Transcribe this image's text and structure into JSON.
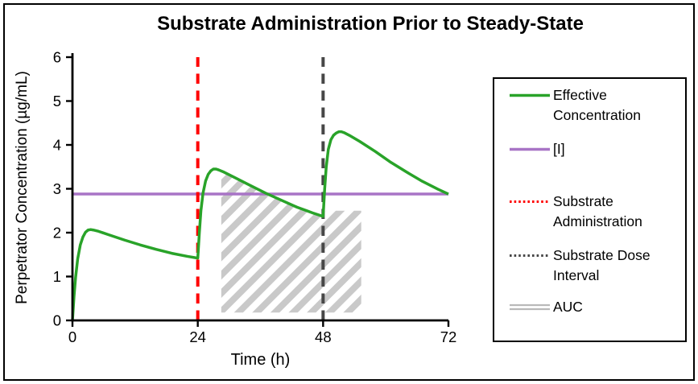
{
  "chart_data": {
    "type": "line",
    "title": "Substrate Administration Prior to Steady-State",
    "xlabel": "Time (h)",
    "ylabel": "Perpetrator Concentration (µg/mL)",
    "xlim": [
      0,
      72
    ],
    "ylim": [
      0,
      6
    ],
    "x_ticks": [
      0,
      24,
      48,
      72
    ],
    "y_ticks": [
      0,
      1,
      2,
      3,
      4,
      5,
      6
    ],
    "grid": false,
    "legend_position": "right",
    "series": [
      {
        "name": "Effective Concentration",
        "color": "#29a329",
        "style": "solid",
        "points": [
          [
            0,
            0
          ],
          [
            0.3,
            0.55
          ],
          [
            0.6,
            0.98
          ],
          [
            1,
            1.4
          ],
          [
            1.5,
            1.72
          ],
          [
            2,
            1.9
          ],
          [
            2.5,
            2.01
          ],
          [
            3,
            2.06
          ],
          [
            3.5,
            2.07
          ],
          [
            4,
            2.06
          ],
          [
            5,
            2.03
          ],
          [
            7,
            1.95
          ],
          [
            10,
            1.83
          ],
          [
            13,
            1.72
          ],
          [
            16,
            1.62
          ],
          [
            19,
            1.53
          ],
          [
            22,
            1.46
          ],
          [
            24,
            1.42
          ],
          [
            24.3,
            2.0
          ],
          [
            24.6,
            2.5
          ],
          [
            25,
            2.9
          ],
          [
            25.5,
            3.18
          ],
          [
            26,
            3.33
          ],
          [
            26.5,
            3.41
          ],
          [
            27,
            3.45
          ],
          [
            27.5,
            3.45
          ],
          [
            28,
            3.43
          ],
          [
            29,
            3.38
          ],
          [
            31,
            3.26
          ],
          [
            34,
            3.08
          ],
          [
            37,
            2.9
          ],
          [
            40,
            2.74
          ],
          [
            43,
            2.58
          ],
          [
            46,
            2.45
          ],
          [
            48,
            2.37
          ],
          [
            48.3,
            3.0
          ],
          [
            48.6,
            3.5
          ],
          [
            49,
            3.9
          ],
          [
            49.5,
            4.12
          ],
          [
            50,
            4.22
          ],
          [
            50.5,
            4.27
          ],
          [
            51,
            4.3
          ],
          [
            51.5,
            4.3
          ],
          [
            52,
            4.28
          ],
          [
            53,
            4.22
          ],
          [
            55,
            4.08
          ],
          [
            58,
            3.85
          ],
          [
            61,
            3.6
          ],
          [
            64,
            3.38
          ],
          [
            67,
            3.17
          ],
          [
            70,
            2.99
          ],
          [
            72,
            2.88
          ]
        ]
      },
      {
        "name": "[I]",
        "color": "#a874c6",
        "style": "solid",
        "value": 2.88,
        "points": [
          [
            0,
            2.88
          ],
          [
            72,
            2.88
          ]
        ]
      },
      {
        "name": "Substrate Administration",
        "color": "#ff0000",
        "style": "dashed",
        "at_x": 24,
        "points": [
          [
            24,
            0
          ],
          [
            24,
            6
          ]
        ]
      },
      {
        "name": "Substrate Dose Interval",
        "color": "#474747",
        "style": "dashed",
        "at_x": 48,
        "points": [
          [
            48,
            0
          ],
          [
            48,
            6
          ]
        ]
      }
    ],
    "auc_region": {
      "name": "AUC",
      "fill_style": "diagonal-hatch",
      "color": "#c9c9c9",
      "points": [
        [
          28.5,
          0.18
        ],
        [
          28.5,
          3.35
        ],
        [
          29,
          3.38
        ],
        [
          31,
          3.26
        ],
        [
          34,
          3.08
        ],
        [
          37,
          2.9
        ],
        [
          40,
          2.74
        ],
        [
          43,
          2.58
        ],
        [
          46,
          2.45
        ],
        [
          48,
          2.38
        ],
        [
          48.6,
          2.5
        ],
        [
          55.3,
          2.5
        ],
        [
          55.3,
          0.18
        ]
      ]
    }
  },
  "legend": {
    "items": [
      {
        "label": "Effective Concentration",
        "swatch": "solid-line",
        "color": "#29a329"
      },
      {
        "label": "[I]",
        "swatch": "solid-line",
        "color": "#a874c6"
      },
      {
        "label": "Substrate Administration",
        "swatch": "dotted-line",
        "color": "#ff0000"
      },
      {
        "label": "Substrate Dose Interval",
        "swatch": "dotted-line",
        "color": "#474747"
      },
      {
        "label": "AUC",
        "swatch": "double-line",
        "color": "#b9b9b9"
      }
    ]
  }
}
